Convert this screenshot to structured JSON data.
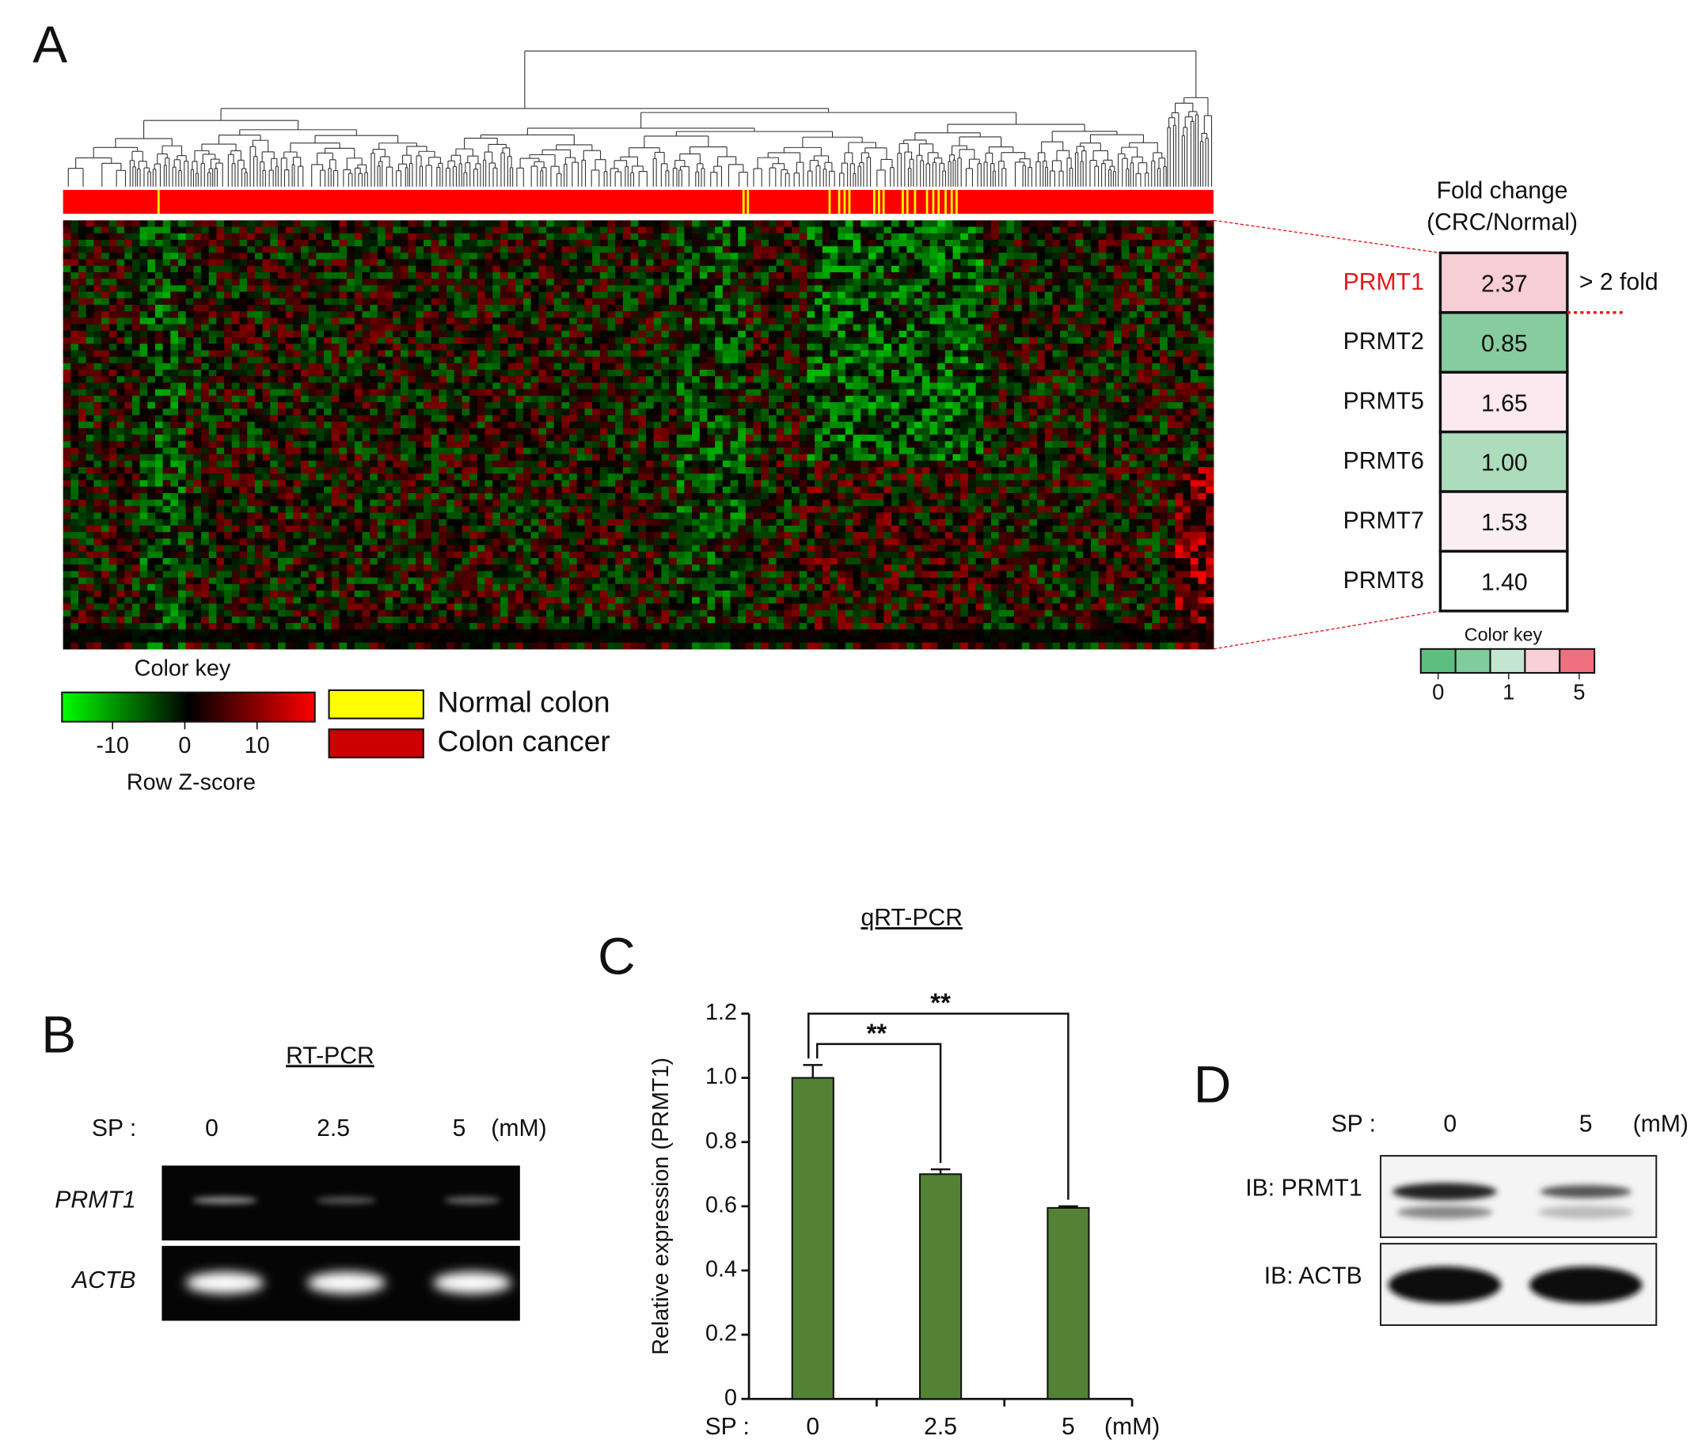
{
  "panel_a": {
    "label": "A",
    "heatmap_key": {
      "title": "Color key",
      "ticks": [
        -10,
        0,
        10
      ],
      "lim": [
        -17,
        18
      ],
      "axis_label": "Row Z-score"
    },
    "legend": [
      {
        "name": "Normal colon",
        "color": "#ffff00"
      },
      {
        "name": "Colon cancer",
        "color": "#cc0000"
      }
    ],
    "fold_change": {
      "title": "Fold change",
      "subtitle": "(CRC/Normal)",
      "rows": [
        {
          "gene": "PRMT1",
          "value": "2.37",
          "fill": "#f7cdd6",
          "label_color": "#e8141c"
        },
        {
          "gene": "PRMT2",
          "value": "0.85",
          "fill": "#86cc9f",
          "label_color": "#111111"
        },
        {
          "gene": "PRMT5",
          "value": "1.65",
          "fill": "#fbe9ef",
          "label_color": "#111111"
        },
        {
          "gene": "PRMT6",
          "value": "1.00",
          "fill": "#acdcbc",
          "label_color": "#111111"
        },
        {
          "gene": "PRMT7",
          "value": "1.53",
          "fill": "#fbeef3",
          "label_color": "#111111"
        },
        {
          "gene": "PRMT8",
          "value": "1.40",
          "fill": "#ffffff",
          "label_color": "#111111"
        }
      ],
      "annotation": "> 2 fold",
      "key": {
        "title": "Color key",
        "colors": [
          "#5cbf80",
          "#7fcc9c",
          "#c4e6d0",
          "#f8d0d8",
          "#f07080"
        ],
        "tick_labels": [
          "0",
          "1",
          "5"
        ]
      }
    }
  },
  "panel_b": {
    "label": "B",
    "title": "RT-PCR",
    "prefix": "SP :",
    "doses": [
      "0",
      "2.5",
      "5"
    ],
    "unit": "(mM)",
    "rows": [
      "PRMT1",
      "ACTB"
    ]
  },
  "chart_data": {
    "type": "bar",
    "panel_label": "C",
    "title": "qRT-PCR",
    "y_label": "Relative expression (PRMT1)",
    "x_prefix": "SP :",
    "x_unit": "(mM)",
    "categories": [
      "0",
      "2.5",
      "5"
    ],
    "values": [
      1.0,
      0.7,
      0.595
    ],
    "errors": [
      0.04,
      0.015,
      0.005
    ],
    "color": "#548235",
    "ylim": [
      0,
      1.2
    ],
    "yticks": [
      0,
      0.2,
      0.4,
      0.6,
      0.8,
      {
        "value": 1,
        "label": "1.0"
      },
      1.2
    ],
    "annotations": [
      "**",
      "**"
    ]
  },
  "panel_d": {
    "label": "D",
    "prefix": "SP :",
    "doses": [
      "0",
      "5"
    ],
    "unit": "(mM)",
    "rows": [
      "IB: PRMT1",
      "IB: ACTB"
    ]
  }
}
